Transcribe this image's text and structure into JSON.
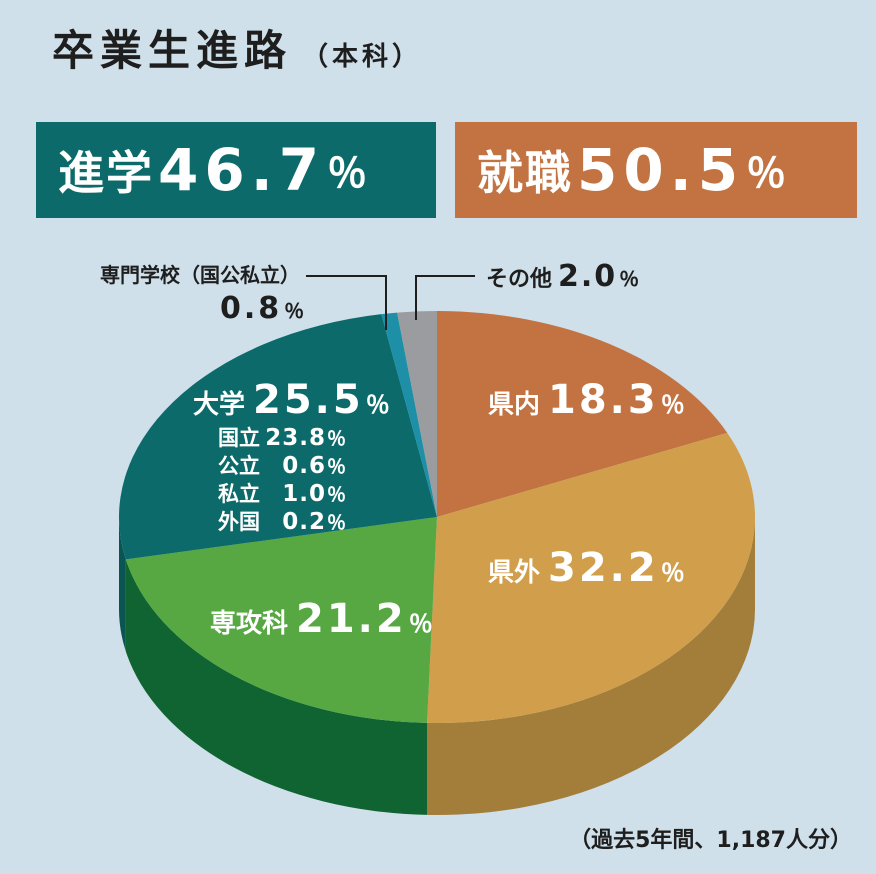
{
  "title": "卒業生進路",
  "title_sub": "（本科）",
  "banners": [
    {
      "label": "進学",
      "value": "46.7",
      "unit": "％",
      "color": "#0c6b6a"
    },
    {
      "label": "就職",
      "value": "50.5",
      "unit": "％",
      "color": "#c27341"
    }
  ],
  "chart_data": {
    "type": "pie",
    "unit": "％",
    "slices": [
      {
        "label": "県内",
        "value": 18.3,
        "color": "#c27341",
        "side": "#9c5a31"
      },
      {
        "label": "県外",
        "value": 32.2,
        "color": "#d19f4b",
        "side": "#a37d3a"
      },
      {
        "label": "専攻科",
        "value": 21.2,
        "color": "#57a843",
        "side": "#0f6431"
      },
      {
        "label": "大学",
        "value": 25.5,
        "color": "#0c6b6a",
        "side": "#0a5453",
        "breakdown": [
          {
            "label": "国立",
            "value": "23.8"
          },
          {
            "label": "公立",
            "value": "0.6"
          },
          {
            "label": "私立",
            "value": "1.0"
          },
          {
            "label": "外国",
            "value": "0.2"
          }
        ]
      },
      {
        "label": "専門学校（国公私立）",
        "value": 0.8,
        "color": "#1d90a8",
        "side": "#157085"
      },
      {
        "label": "その他",
        "value": 2.0,
        "color": "#9a9c9f",
        "side": "#737578"
      }
    ]
  },
  "footnote": "（過去5年間、1,187人分）"
}
